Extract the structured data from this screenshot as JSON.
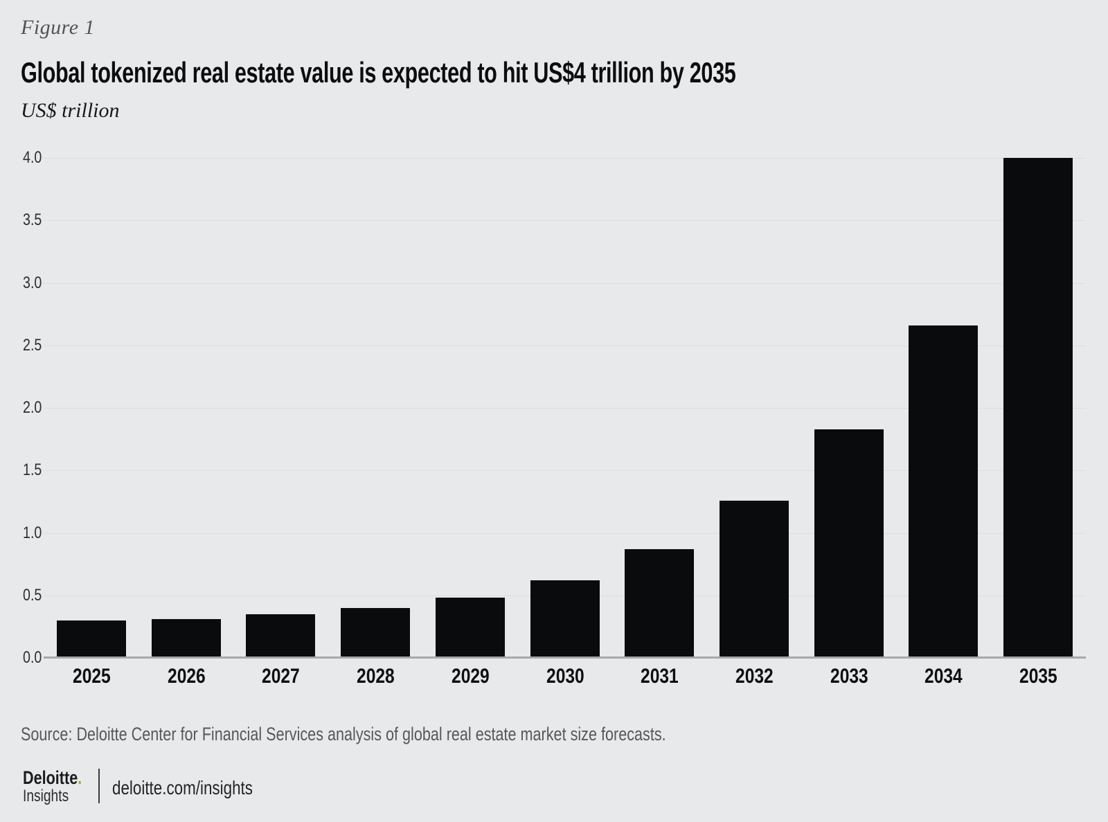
{
  "figure": {
    "label": "Figure 1",
    "title": "Global tokenized real estate value is expected to hit US$4 trillion by 2035",
    "unit": "US$ trillion",
    "source": "Source: Deloitte Center for Financial Services analysis of global real estate market size forecasts."
  },
  "chart_data": {
    "type": "bar",
    "title": "Global tokenized real estate value is expected to hit US$4 trillion by 2035",
    "xlabel": "",
    "ylabel": "US$ trillion",
    "categories": [
      "2025",
      "2026",
      "2027",
      "2028",
      "2029",
      "2030",
      "2031",
      "2032",
      "2033",
      "2034",
      "2035"
    ],
    "values": [
      0.3,
      0.31,
      0.35,
      0.4,
      0.48,
      0.62,
      0.87,
      1.26,
      1.83,
      2.66,
      4.0
    ],
    "ylim": [
      0,
      4
    ],
    "ytick_step": 0.5,
    "ytick_labels": [
      "0.0",
      "0.5",
      "1.0",
      "1.5",
      "2.0",
      "2.5",
      "3.0",
      "3.5",
      "4.0"
    ],
    "grid": true,
    "legend": "none",
    "bar_color": "#0a0b0d"
  },
  "footer": {
    "brand": "Deloitte",
    "brand_dot": ".",
    "brand_sub": "Insights",
    "url": "deloitte.com/insights"
  },
  "colors": {
    "background": "#e8e9ea",
    "bar": "#0a0b0d",
    "gridline": "#dcddde",
    "axis_line": "#a7a8aa",
    "accent_green": "#86BC25"
  }
}
